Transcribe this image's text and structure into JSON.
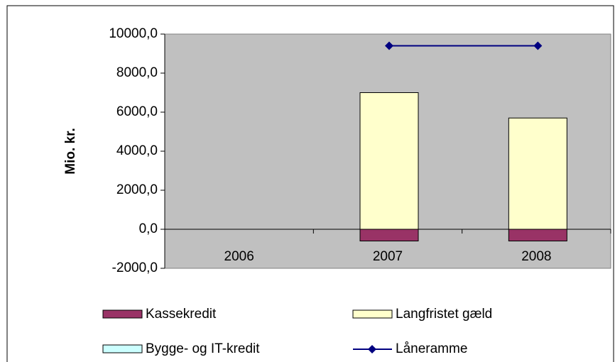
{
  "chart_data": {
    "type": "bar",
    "categories": [
      "2006",
      "2007",
      "2008"
    ],
    "y_label": "Mio. kr.",
    "series": [
      {
        "name": "Kassekredit",
        "color": "#993366",
        "values": [
          null,
          -600,
          -600
        ]
      },
      {
        "name": "Langfristet gæld",
        "color": "#ffffcc",
        "values": [
          null,
          7000,
          5700
        ]
      },
      {
        "name": "Bygge- og IT-kredit",
        "color": "#ccffff",
        "values": [
          null,
          0,
          0
        ]
      },
      {
        "name": "Låneramme",
        "type": "line",
        "color": "#000080",
        "values": [
          null,
          9400,
          9400
        ]
      }
    ],
    "stacked": true,
    "ylim": [
      -2000,
      10000
    ],
    "yticks": [
      {
        "value": -2000,
        "label": "-2000,0"
      },
      {
        "value": 0,
        "label": "0,0"
      },
      {
        "value": 2000,
        "label": "2000,0"
      },
      {
        "value": 4000,
        "label": "4000,0"
      },
      {
        "value": 6000,
        "label": "6000,0"
      },
      {
        "value": 8000,
        "label": "8000,0"
      },
      {
        "value": 10000,
        "label": "10000,0"
      }
    ],
    "grid": false,
    "legend": "bottom"
  }
}
